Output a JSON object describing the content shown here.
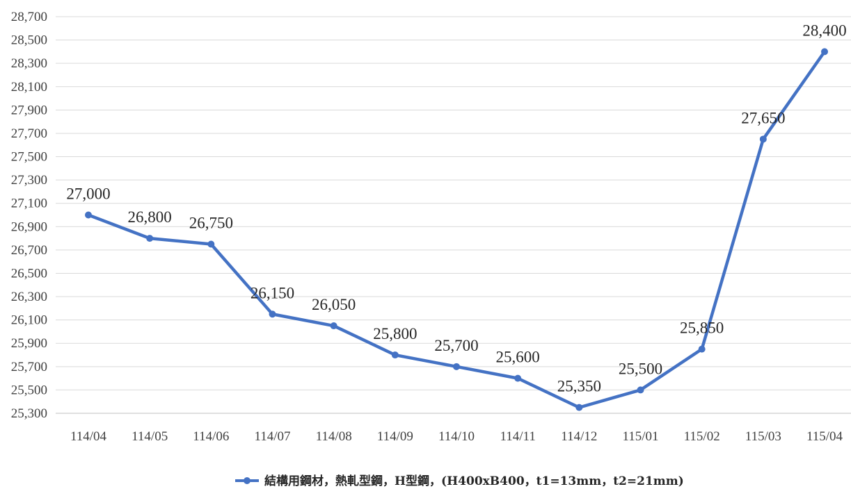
{
  "chart_data": {
    "type": "line",
    "categories": [
      "114/04",
      "114/05",
      "114/06",
      "114/07",
      "114/08",
      "114/09",
      "114/10",
      "114/11",
      "114/12",
      "115/01",
      "115/02",
      "115/03",
      "115/04"
    ],
    "series": [
      {
        "name": "結構用鋼材，熱軋型鋼，H型鋼，(H400xB400，t1=13mm，t2=21mm)",
        "values": [
          27000,
          26800,
          26750,
          26150,
          26050,
          25800,
          25700,
          25600,
          25350,
          25500,
          25850,
          27650,
          28400
        ],
        "labels": [
          "27,000",
          "26,800",
          "26,750",
          "26,150",
          "26,050",
          "25,800",
          "25,700",
          "25,600",
          "25,350",
          "25,500",
          "25,850",
          "27,650",
          "28,400"
        ],
        "color": "#4472C4"
      }
    ],
    "y_ticks": [
      "25,300",
      "25,500",
      "25,700",
      "25,900",
      "26,100",
      "26,300",
      "26,500",
      "26,700",
      "26,900",
      "27,100",
      "27,300",
      "27,500",
      "27,700",
      "27,900",
      "28,100",
      "28,300",
      "28,500",
      "28,700"
    ],
    "ylim": [
      25300,
      28700
    ],
    "y_step": 200,
    "grid": true,
    "grid_color": "#d9d9d9",
    "legend_position": "bottom"
  }
}
